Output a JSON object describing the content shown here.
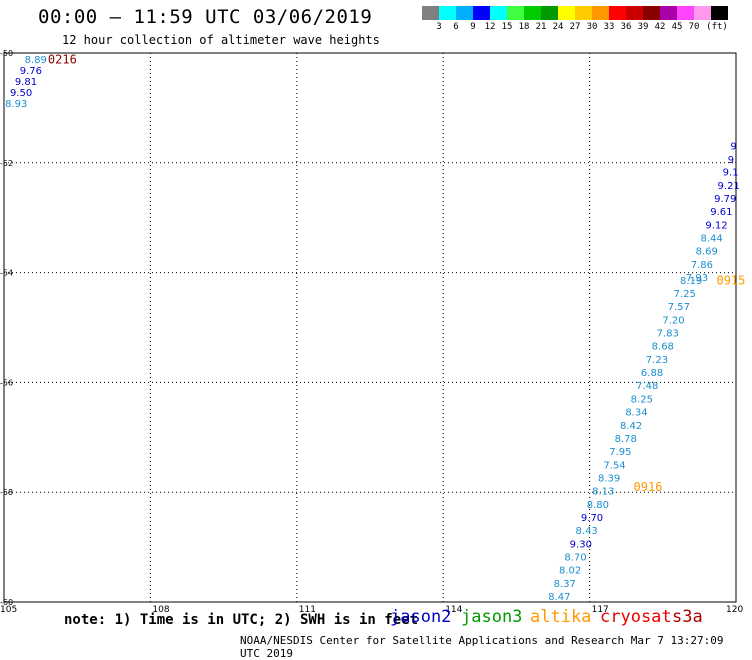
{
  "header": {
    "title": "00:00 – 11:59 UTC 03/06/2019",
    "subtitle": "12 hour collection of altimeter wave heights"
  },
  "color_scale": {
    "colors": [
      "#808080",
      "#00ffff",
      "#00b0ff",
      "#0000ff",
      "#00ffff",
      "#40ff40",
      "#00cc00",
      "#009900",
      "#ffff00",
      "#ffcc00",
      "#ff9900",
      "#ff0000",
      "#cc0000",
      "#880000",
      "#aa00aa",
      "#ff44ff",
      "#ff99ee",
      "#000000"
    ],
    "labels": [
      "3",
      "6",
      "9",
      "12",
      "15",
      "18",
      "21",
      "24",
      "27",
      "30",
      "33",
      "36",
      "39",
      "42",
      "45",
      "70",
      "(ft)"
    ]
  },
  "footer": {
    "note": "note:  1) Time is in UTC;  2) SWH is in feet",
    "satellites": [
      {
        "name": "jason2",
        "color": "#0000cc"
      },
      {
        "name": "jason3",
        "color": "#009900"
      },
      {
        "name": "altika",
        "color": "#ff9900"
      },
      {
        "name": "cryosat",
        "color": "#ee0000"
      },
      {
        "name": "s3a",
        "color": "#aa0000"
      }
    ],
    "credit": "NOAA/NESDIS Center for Satellite Applications and Research    Mar  7 13:27:09 UTC 2019"
  },
  "chart_data": {
    "type": "scatter",
    "title": "00:00 – 11:59 UTC 03/06/2019",
    "subtitle": "12 hour collection of altimeter wave heights",
    "xlabel": "",
    "ylabel": "",
    "xlim": [
      105,
      120
    ],
    "ylim": [
      -60,
      -50
    ],
    "x_ticks": [
      105,
      108,
      111,
      114,
      117,
      120
    ],
    "x_tick_labels": [
      "105",
      "108",
      "111",
      "114",
      "117",
      "120"
    ],
    "y_ticks": [
      -50,
      -52,
      -54,
      -56,
      -58,
      -60
    ],
    "y_tick_labels": [
      "-50",
      "-52",
      "-54",
      "-56",
      "-58",
      "-60"
    ],
    "grid": true,
    "time_labels": [
      {
        "text": "0216",
        "lon": 105.9,
        "lat": -50.13,
        "color": "#880000"
      },
      {
        "text": "0915",
        "lon": 119.6,
        "lat": -54.15,
        "color": "#ff9900"
      },
      {
        "text": "0916",
        "lon": 117.9,
        "lat": -57.91,
        "color": "#ff9900"
      }
    ],
    "series": [
      {
        "name": "track-0216",
        "points": [
          {
            "lon": 105.65,
            "lat": -50.13,
            "swh": "8.89",
            "color": "#1a8fd0"
          },
          {
            "lon": 105.55,
            "lat": -50.33,
            "swh": "9.76",
            "color": "#0000cc"
          },
          {
            "lon": 105.45,
            "lat": -50.53,
            "swh": "9.81",
            "color": "#0000cc"
          },
          {
            "lon": 105.35,
            "lat": -50.73,
            "swh": "9.50",
            "color": "#0000cc"
          },
          {
            "lon": 105.25,
            "lat": -50.93,
            "swh": "8.93",
            "color": "#1a8fd0"
          }
        ]
      },
      {
        "name": "track-0915",
        "points": [
          {
            "lon": 119.95,
            "lat": -51.7,
            "swh": "9",
            "color": "#0000cc"
          },
          {
            "lon": 119.93,
            "lat": -51.95,
            "swh": "9.",
            "color": "#0000cc"
          },
          {
            "lon": 119.89,
            "lat": -52.18,
            "swh": "9.1",
            "color": "#0000cc"
          },
          {
            "lon": 119.85,
            "lat": -52.42,
            "swh": "9.21",
            "color": "#0000cc"
          },
          {
            "lon": 119.78,
            "lat": -52.66,
            "swh": "9.79",
            "color": "#0000cc"
          },
          {
            "lon": 119.7,
            "lat": -52.9,
            "swh": "9.61",
            "color": "#0000cc"
          },
          {
            "lon": 119.6,
            "lat": -53.14,
            "swh": "9.12",
            "color": "#0000cc"
          },
          {
            "lon": 119.5,
            "lat": -53.38,
            "swh": "8.44",
            "color": "#1a8fd0"
          },
          {
            "lon": 119.4,
            "lat": -53.62,
            "swh": "8.69",
            "color": "#1a8fd0"
          },
          {
            "lon": 119.3,
            "lat": -53.86,
            "swh": "7.86",
            "color": "#1a8fd0"
          },
          {
            "lon": 119.2,
            "lat": -54.1,
            "swh": "7.93",
            "color": "#1a8fd0"
          },
          {
            "lon": 119.08,
            "lat": -54.15,
            "swh": "8.19",
            "color": "#1a8fd0"
          },
          {
            "lon": 118.95,
            "lat": -54.39,
            "swh": "7.25",
            "color": "#1a8fd0"
          },
          {
            "lon": 118.83,
            "lat": -54.63,
            "swh": "7.57",
            "color": "#1a8fd0"
          },
          {
            "lon": 118.72,
            "lat": -54.87,
            "swh": "7.20",
            "color": "#1a8fd0"
          },
          {
            "lon": 118.6,
            "lat": -55.11,
            "swh": "7.83",
            "color": "#1a8fd0"
          },
          {
            "lon": 118.5,
            "lat": -55.35,
            "swh": "8.68",
            "color": "#1a8fd0"
          },
          {
            "lon": 118.38,
            "lat": -55.59,
            "swh": "7.23",
            "color": "#1a8fd0"
          },
          {
            "lon": 118.28,
            "lat": -55.83,
            "swh": "6.88",
            "color": "#1a8fd0"
          },
          {
            "lon": 118.18,
            "lat": -56.07,
            "swh": "7.48",
            "color": "#1a8fd0"
          },
          {
            "lon": 118.07,
            "lat": -56.31,
            "swh": "8.25",
            "color": "#1a8fd0"
          },
          {
            "lon": 117.96,
            "lat": -56.55,
            "swh": "8.34",
            "color": "#1a8fd0"
          },
          {
            "lon": 117.85,
            "lat": -56.79,
            "swh": "8.42",
            "color": "#1a8fd0"
          },
          {
            "lon": 117.74,
            "lat": -57.03,
            "swh": "8.78",
            "color": "#1a8fd0"
          },
          {
            "lon": 117.63,
            "lat": -57.27,
            "swh": "7.95",
            "color": "#1a8fd0"
          },
          {
            "lon": 117.51,
            "lat": -57.51,
            "swh": "7.54",
            "color": "#1a8fd0"
          },
          {
            "lon": 117.4,
            "lat": -57.75,
            "swh": "8.39",
            "color": "#1a8fd0"
          },
          {
            "lon": 117.28,
            "lat": -57.99,
            "swh": "8.13",
            "color": "#1a8fd0"
          },
          {
            "lon": 117.17,
            "lat": -58.23,
            "swh": "8.80",
            "color": "#1a8fd0"
          },
          {
            "lon": 117.05,
            "lat": -58.47,
            "swh": "9.70",
            "color": "#0000cc"
          },
          {
            "lon": 116.94,
            "lat": -58.71,
            "swh": "8.43",
            "color": "#1a8fd0"
          },
          {
            "lon": 116.82,
            "lat": -58.95,
            "swh": "9.30",
            "color": "#0000cc"
          },
          {
            "lon": 116.71,
            "lat": -59.19,
            "swh": "8.70",
            "color": "#1a8fd0"
          },
          {
            "lon": 116.6,
            "lat": -59.43,
            "swh": "8.02",
            "color": "#1a8fd0"
          },
          {
            "lon": 116.49,
            "lat": -59.67,
            "swh": "8.37",
            "color": "#1a8fd0"
          },
          {
            "lon": 116.38,
            "lat": -59.91,
            "swh": "8.47",
            "color": "#1a8fd0"
          }
        ]
      }
    ]
  }
}
